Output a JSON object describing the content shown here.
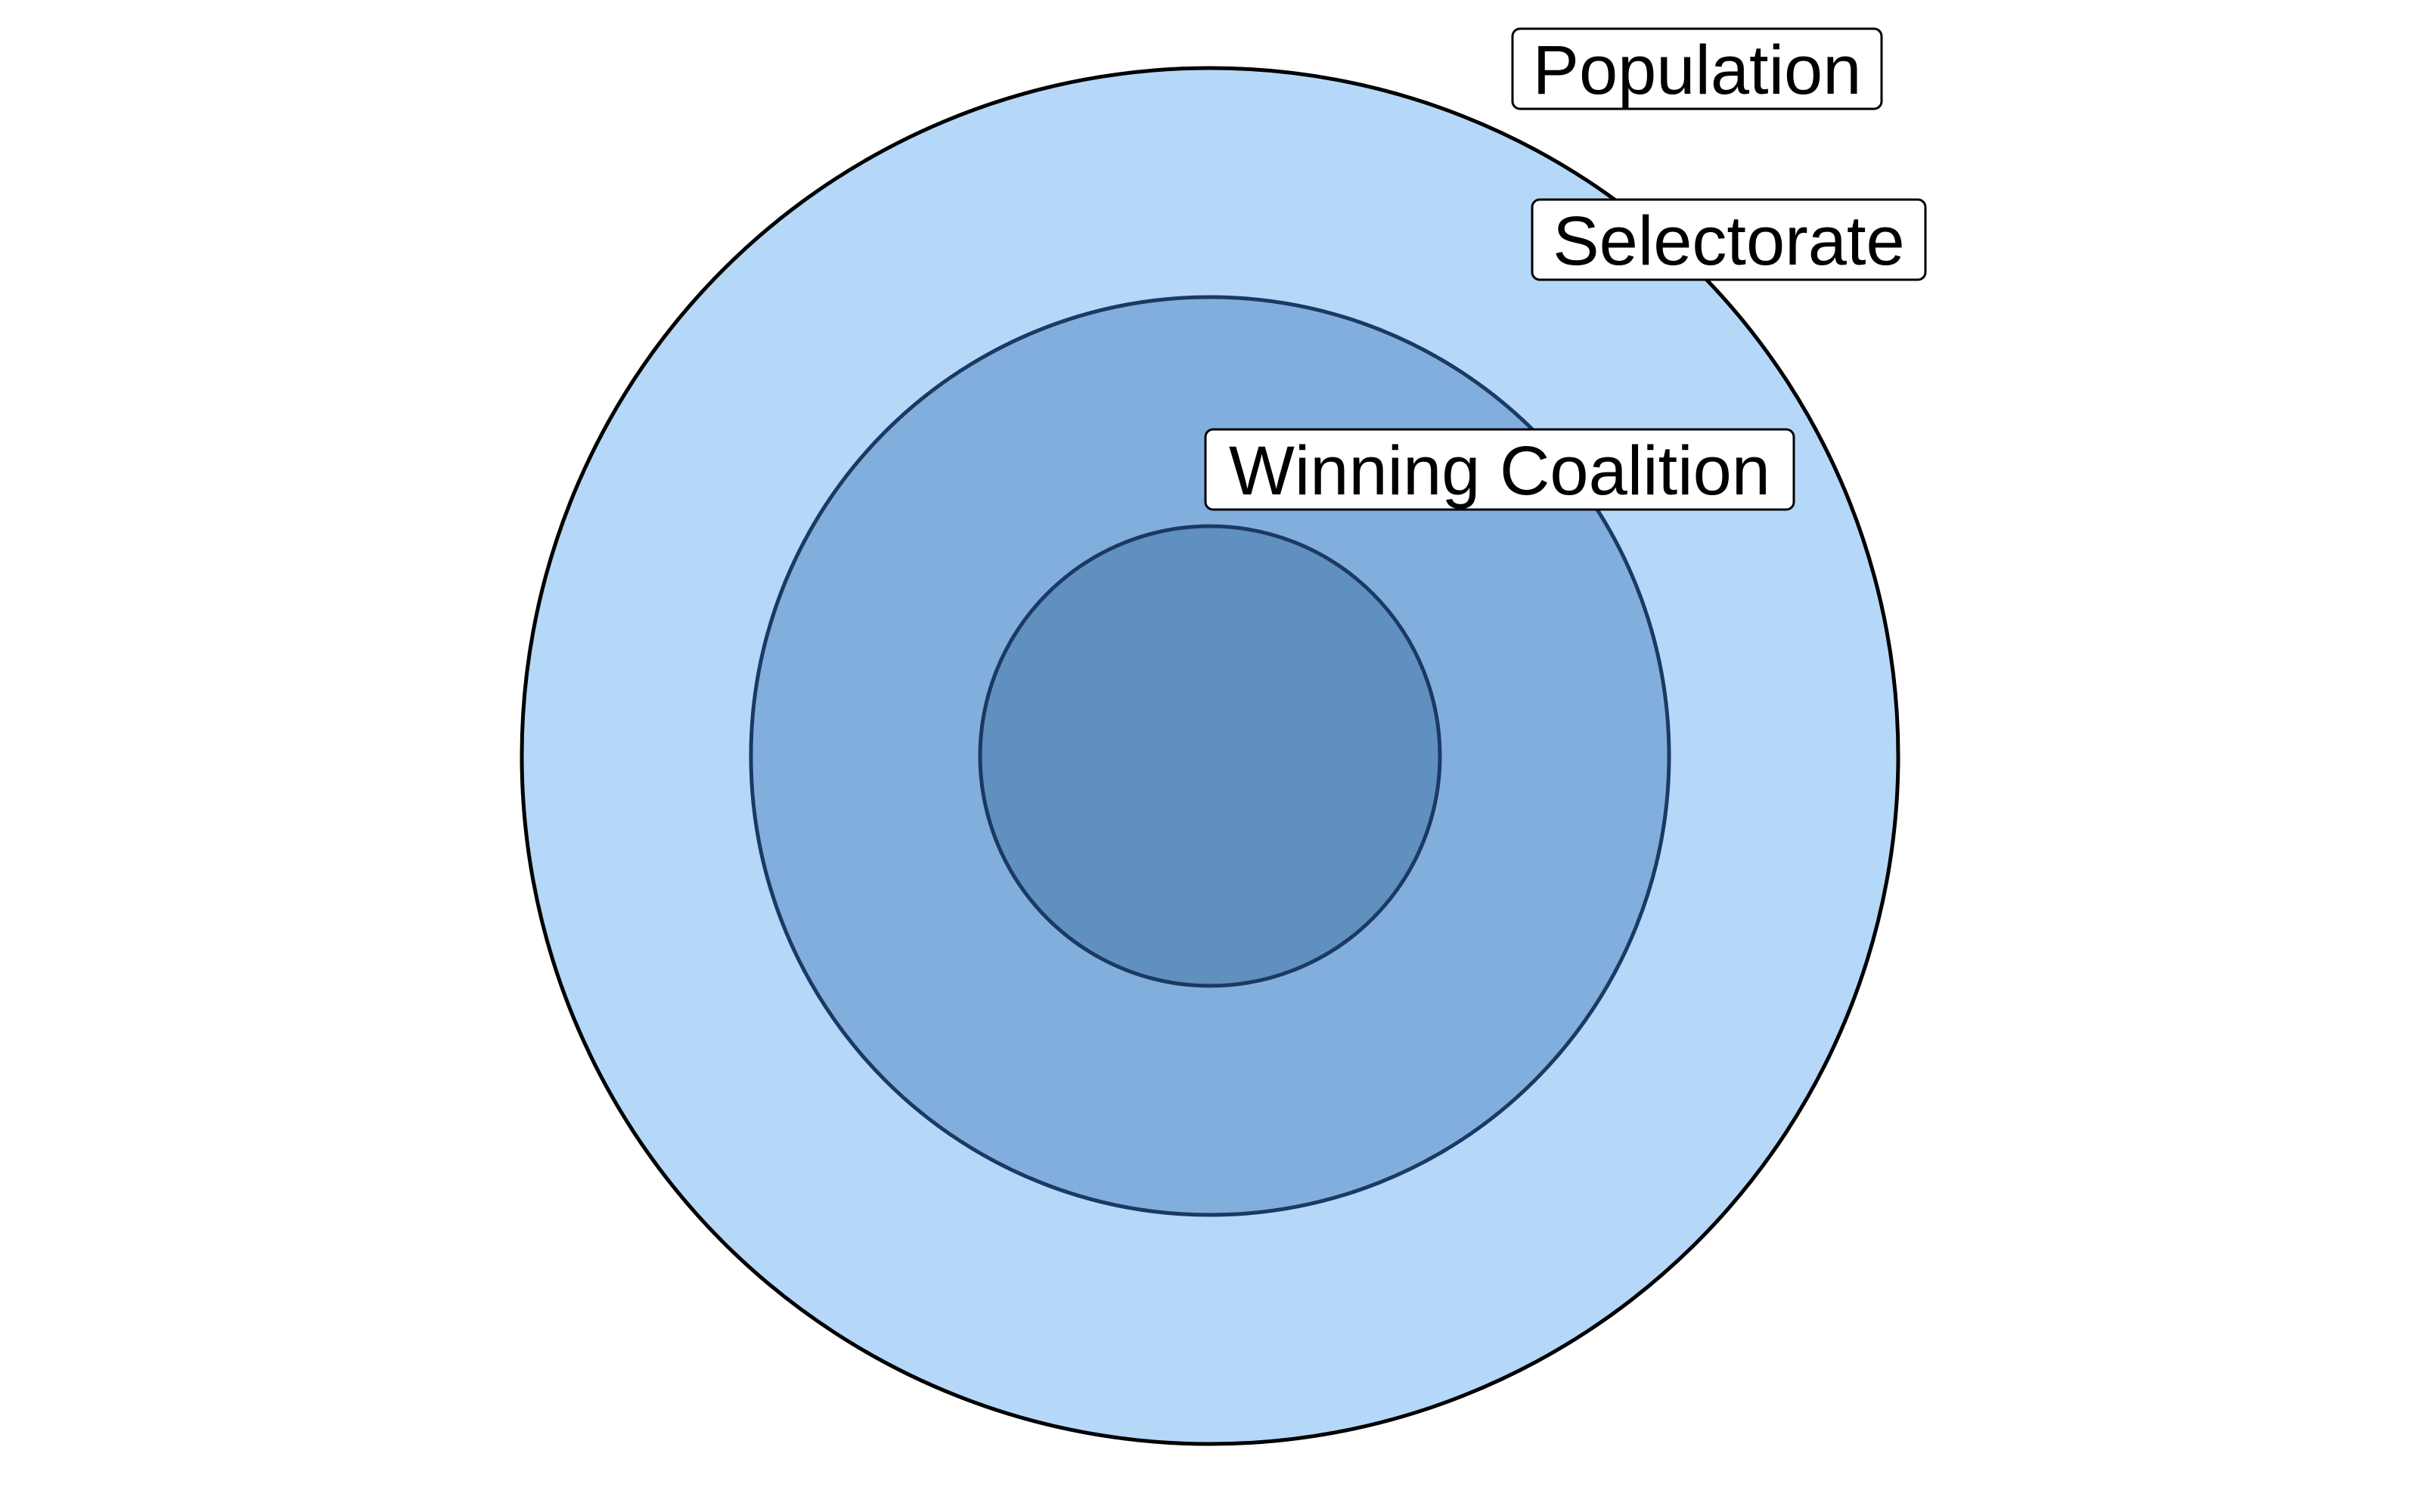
{
  "diagram": {
    "type": "nested-circles",
    "colors": {
      "outer_fill": "#b5d8f9",
      "outer_stroke": "#000000",
      "middle_fill": "#82aedd",
      "middle_stroke": "#1b3a63",
      "inner_fill": "#6090c0",
      "inner_stroke": "#1b3a63"
    },
    "labels": {
      "population": "Population",
      "selectorate": "Selectorate",
      "winning_coalition": "Winning Coalition"
    }
  }
}
